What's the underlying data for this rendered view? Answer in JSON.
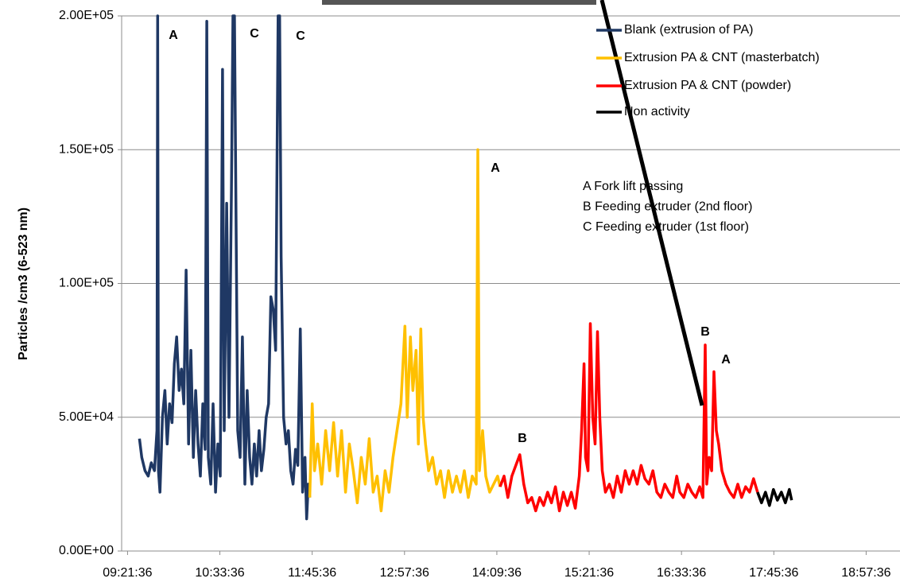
{
  "chart_data": {
    "type": "line",
    "ylabel": "Particles /cm3 (6-523 nm)",
    "xlim": [
      557,
      1164
    ],
    "ylim": [
      0,
      200000
    ],
    "xticks": [
      {
        "value": 561.6,
        "label": "09:21:36"
      },
      {
        "value": 633.6,
        "label": "10:33:36"
      },
      {
        "value": 705.6,
        "label": "11:45:36"
      },
      {
        "value": 777.6,
        "label": "12:57:36"
      },
      {
        "value": 849.6,
        "label": "14:09:36"
      },
      {
        "value": 921.6,
        "label": "15:21:36"
      },
      {
        "value": 993.6,
        "label": "16:33:36"
      },
      {
        "value": 1065.6,
        "label": "17:45:36"
      },
      {
        "value": 1137.6,
        "label": "18:57:36"
      }
    ],
    "yticks": [
      {
        "value": 0,
        "label": "0.00E+00"
      },
      {
        "value": 50000,
        "label": "5.00E+04"
      },
      {
        "value": 100000,
        "label": "1.00E+05"
      },
      {
        "value": 150000,
        "label": "1.50E+05"
      },
      {
        "value": 200000,
        "label": "2.00E+05"
      }
    ],
    "grid": true,
    "legend": "upper right",
    "series": [
      {
        "name": "Blank (extrusion of PA)",
        "color": "#1f3864",
        "x": [
          570.9,
          572.7,
          575.2,
          577.7,
          580.1,
          582.6,
          584.5,
          585.1,
          585.7,
          586.9,
          588.8,
          590.7,
          592.5,
          594.4,
          596.3,
          598.1,
          599.9,
          601.8,
          603.6,
          605.5,
          607.3,
          609.2,
          611.0,
          612.9,
          614.7,
          616.6,
          618.4,
          620.3,
          622.1,
          623.4,
          624.6,
          626.5,
          628.3,
          630.2,
          632.0,
          633.9,
          635.7,
          637.0,
          638.9,
          640.7,
          642.6,
          643.8,
          645.0,
          646.3,
          647.5,
          649.4,
          651.2,
          653.1,
          654.9,
          656.8,
          658.6,
          660.5,
          662.3,
          664.2,
          666.0,
          667.9,
          669.7,
          671.6,
          673.4,
          675.3,
          677.1,
          679.0,
          680.2,
          681.4,
          683.3,
          685.2,
          687.0,
          688.9,
          690.7,
          692.6,
          694.4,
          696.3,
          698.1,
          700.0,
          701.3,
          702.5,
          703.7
        ],
        "values": [
          42000,
          35000,
          30000,
          28000,
          33000,
          30000,
          45000,
          200000,
          30000,
          22000,
          50000,
          60000,
          40000,
          55000,
          48000,
          70000,
          80000,
          60000,
          68000,
          55000,
          105000,
          40000,
          75000,
          35000,
          60000,
          40000,
          28000,
          55000,
          38000,
          198000,
          35000,
          25000,
          55000,
          22000,
          40000,
          28000,
          180000,
          45000,
          130000,
          50000,
          135000,
          200000,
          200000,
          120000,
          45000,
          35000,
          80000,
          25000,
          60000,
          35000,
          25000,
          40000,
          28000,
          45000,
          30000,
          38000,
          50000,
          55000,
          95000,
          90000,
          75000,
          200000,
          200000,
          110000,
          50000,
          40000,
          45000,
          30000,
          25000,
          38000,
          32000,
          83000,
          22000,
          35000,
          12000,
          25000,
          20000
        ]
      },
      {
        "name": "Extrusion PA & CNT (masterbatch)",
        "color": "#ffc000",
        "x": [
          703.7,
          705.6,
          707.4,
          709.9,
          713.0,
          716.1,
          719.2,
          722.3,
          725.4,
          728.5,
          731.6,
          734.6,
          737.7,
          740.8,
          743.9,
          747.0,
          750.1,
          753.2,
          756.3,
          759.4,
          762.5,
          765.5,
          768.6,
          771.7,
          774.8,
          777.9,
          779.7,
          782.2,
          784.1,
          786.6,
          788.4,
          790.3,
          792.1,
          794.0,
          796.4,
          799.5,
          802.6,
          805.7,
          808.8,
          811.9,
          815.0,
          818.1,
          821.2,
          824.2,
          827.3,
          830.4,
          833.5,
          834.8,
          836.0,
          838.5,
          841.0,
          844.0,
          847.1,
          850.2,
          852.1
        ],
        "values": [
          20000,
          55000,
          30000,
          40000,
          25000,
          45000,
          30000,
          48000,
          28000,
          45000,
          22000,
          40000,
          30000,
          18000,
          35000,
          25000,
          42000,
          22000,
          28000,
          15000,
          30000,
          22000,
          35000,
          45000,
          55000,
          84000,
          50000,
          80000,
          60000,
          75000,
          40000,
          83000,
          50000,
          40000,
          30000,
          35000,
          25000,
          30000,
          20000,
          30000,
          22000,
          28000,
          22000,
          30000,
          20000,
          28000,
          25000,
          150000,
          30000,
          45000,
          28000,
          22000,
          25000,
          28000,
          24000
        ]
      },
      {
        "name": "Extrusion PA & CNT (powder)",
        "color": "#ff0000",
        "x": [
          852.1,
          855.2,
          858.2,
          861.3,
          864.4,
          867.5,
          870.6,
          873.7,
          876.8,
          879.9,
          883.0,
          886.1,
          889.2,
          892.2,
          895.3,
          898.4,
          901.5,
          904.6,
          907.7,
          910.8,
          913.9,
          915.7,
          917.6,
          918.8,
          920.7,
          922.5,
          924.4,
          926.2,
          928.1,
          929.9,
          931.8,
          934.3,
          937.4,
          940.5,
          943.5,
          946.6,
          949.7,
          952.8,
          955.9,
          959.0,
          962.1,
          965.1,
          968.2,
          971.3,
          974.4,
          977.5,
          980.6,
          983.7,
          986.8,
          989.9,
          992.3,
          995.4,
          998.5,
          1001.6,
          1004.7,
          1007.8,
          1010.3,
          1012.1,
          1013.3,
          1015.2,
          1017.1,
          1018.9,
          1020.8,
          1022.6,
          1025.1,
          1028.2,
          1031.3,
          1034.4,
          1037.5,
          1040.5,
          1043.6,
          1046.7,
          1049.8,
          1052.9
        ],
        "values": [
          24000,
          28000,
          20000,
          28000,
          32000,
          36000,
          25000,
          18000,
          20000,
          15000,
          20000,
          17000,
          22000,
          18000,
          24000,
          15000,
          22000,
          17000,
          22000,
          16000,
          28000,
          45000,
          70000,
          35000,
          30000,
          85000,
          50000,
          40000,
          82000,
          50000,
          30000,
          22000,
          25000,
          20000,
          28000,
          22000,
          30000,
          25000,
          30000,
          25000,
          32000,
          27000,
          25000,
          30000,
          22000,
          20000,
          25000,
          22000,
          20000,
          28000,
          22000,
          20000,
          25000,
          22000,
          20000,
          24000,
          20000,
          77000,
          25000,
          35000,
          30000,
          67000,
          45000,
          40000,
          30000,
          25000,
          22000,
          20000,
          25000,
          20000,
          24000,
          22000,
          27000,
          22000
        ]
      },
      {
        "name": "Non activity",
        "color": "#000000",
        "x": [
          1052.9,
          1056.0,
          1059.1,
          1062.2,
          1065.3,
          1068.4,
          1071.5,
          1074.6,
          1077.7,
          1079.5
        ],
        "values": [
          22000,
          18000,
          22000,
          17000,
          23000,
          19000,
          22000,
          18000,
          23000,
          19000
        ]
      }
    ],
    "annotations": [
      "A",
      "C",
      "C",
      "A",
      "B",
      "B",
      "A"
    ],
    "notes": [
      "A Fork lift passing",
      "B Feeding extruder (2nd floor)",
      "C Feeding extruder (1st floor)"
    ]
  }
}
